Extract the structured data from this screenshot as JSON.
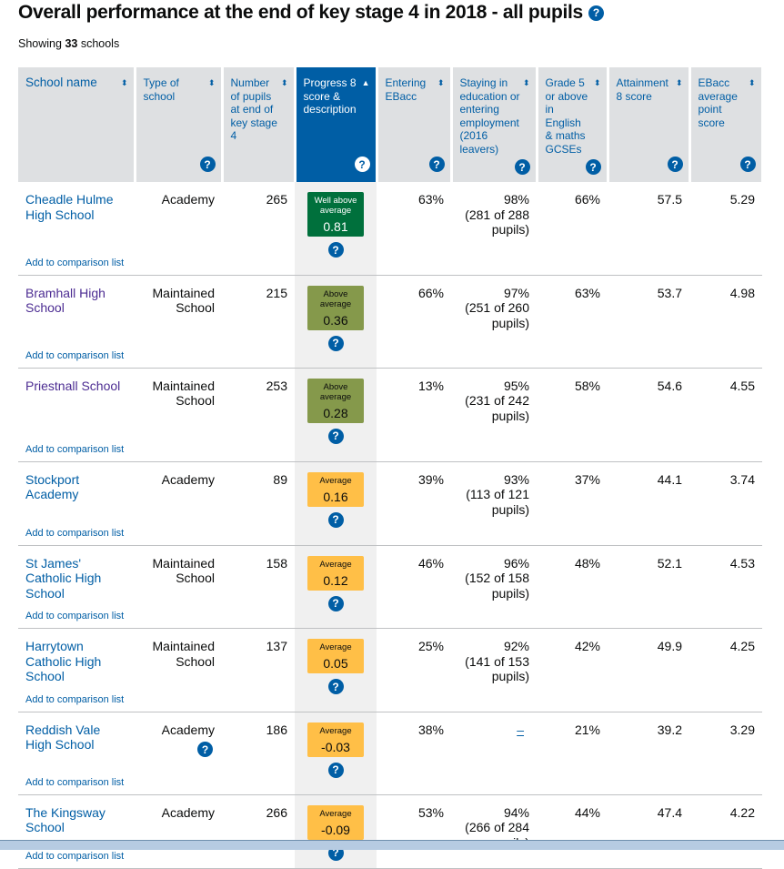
{
  "title": "Overall performance at the end of key stage 4 in 2018 - all pupils",
  "showing": {
    "prefix": "Showing",
    "count": "33",
    "suffix": "schools"
  },
  "colors": {
    "header_bg": "#dee0e2",
    "sorted_header": "#005ea5",
    "link": "#005ea5",
    "visited_link": "#4c2c92",
    "well_above": "#00703c",
    "above": "#85994b",
    "average": "#ffbf47"
  },
  "columns": [
    {
      "label": "School name",
      "sort": "both",
      "help": false
    },
    {
      "label": "Type of school",
      "sort": "both",
      "help": true
    },
    {
      "label": "Number of pupils at end of key stage 4",
      "sort": "both",
      "help": false
    },
    {
      "label": "Progress 8 score & description",
      "sort": "ascending",
      "help": true,
      "sorted": true
    },
    {
      "label": "Entering EBacc",
      "sort": "both",
      "help": true
    },
    {
      "label": "Staying in education or entering employment (2016 leavers)",
      "sort": "both",
      "help": true
    },
    {
      "label": "Grade 5 or above in English & maths GCSEs",
      "sort": "both",
      "help": true
    },
    {
      "label": "Attainment 8 score",
      "sort": "both",
      "help": true
    },
    {
      "label": "EBacc average point score",
      "sort": "both",
      "help": true
    }
  ],
  "compare_label": "Add to comparison list",
  "rows": [
    {
      "name": "Cheadle Hulme High School",
      "visited": false,
      "type": "Academy",
      "pupils": "265",
      "p8_desc": "Well above average",
      "p8": "0.81",
      "band": "well_above",
      "ebacc": "63%",
      "staying": "98%",
      "staying_detail": "(281 of 288 pupils)",
      "grade5": "66%",
      "att8": "57.5",
      "ebacc_aps": "5.29"
    },
    {
      "name": "Bramhall High School",
      "visited": true,
      "type": "Maintained School",
      "pupils": "215",
      "p8_desc": "Above average",
      "p8": "0.36",
      "band": "above",
      "ebacc": "66%",
      "staying": "97%",
      "staying_detail": "(251 of 260 pupils)",
      "grade5": "63%",
      "att8": "53.7",
      "ebacc_aps": "4.98"
    },
    {
      "name": "Priestnall School",
      "visited": true,
      "type": "Maintained School",
      "pupils": "253",
      "p8_desc": "Above average",
      "p8": "0.28",
      "band": "above",
      "ebacc": "13%",
      "staying": "95%",
      "staying_detail": "(231 of 242 pupils)",
      "grade5": "58%",
      "att8": "54.6",
      "ebacc_aps": "4.55"
    },
    {
      "name": "Stockport Academy",
      "visited": false,
      "type": "Academy",
      "pupils": "89",
      "p8_desc": "Average",
      "p8": "0.16",
      "band": "average",
      "ebacc": "39%",
      "staying": "93%",
      "staying_detail": "(113 of 121 pupils)",
      "grade5": "37%",
      "att8": "44.1",
      "ebacc_aps": "3.74"
    },
    {
      "name": "St James' Catholic High School",
      "visited": false,
      "type": "Maintained School",
      "pupils": "158",
      "p8_desc": "Average",
      "p8": "0.12",
      "band": "average",
      "ebacc": "46%",
      "staying": "96%",
      "staying_detail": "(152 of 158 pupils)",
      "grade5": "48%",
      "att8": "52.1",
      "ebacc_aps": "4.53"
    },
    {
      "name": "Harrytown Catholic High School",
      "visited": false,
      "type": "Maintained School",
      "pupils": "137",
      "p8_desc": "Average",
      "p8": "0.05",
      "band": "average",
      "ebacc": "25%",
      "staying": "92%",
      "staying_detail": "(141 of 153 pupils)",
      "grade5": "42%",
      "att8": "49.9",
      "ebacc_aps": "4.25"
    },
    {
      "name": "Reddish Vale High School",
      "visited": false,
      "type": "Academy",
      "type_help": true,
      "pupils": "186",
      "p8_desc": "Average",
      "p8": "-0.03",
      "band": "average",
      "ebacc": "38%",
      "staying": "–",
      "staying_detail": "",
      "grade5": "21%",
      "att8": "39.2",
      "ebacc_aps": "3.29"
    },
    {
      "name": "The Kingsway School",
      "visited": false,
      "type": "Academy",
      "pupils": "266",
      "p8_desc": "Average",
      "p8": "-0.09",
      "band": "average",
      "ebacc": "53%",
      "staying": "94%",
      "staying_detail": "(266 of 284 pupils)",
      "grade5": "44%",
      "att8": "47.4",
      "ebacc_aps": "4.22"
    }
  ]
}
